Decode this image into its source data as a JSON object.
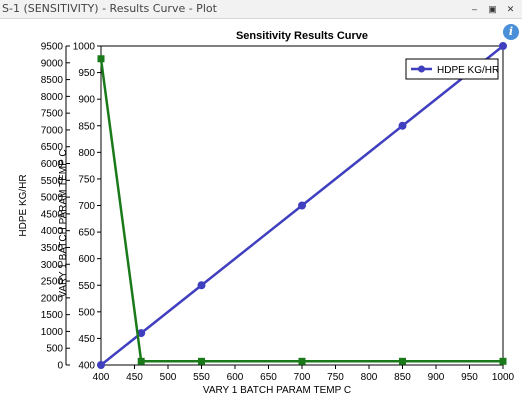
{
  "window": {
    "title": "S-1 (SENSITIVITY) - Results Curve - Plot",
    "buttons": [
      {
        "name": "minimize-button",
        "glyph": "‒"
      },
      {
        "name": "restore-button",
        "glyph": "▣"
      },
      {
        "name": "close-button",
        "glyph": "✕"
      }
    ]
  },
  "info": {
    "glyph": "i",
    "icon": "info-icon"
  },
  "colors": {
    "series_blue": "#3f3fbf",
    "series_green": "#1a7a1a",
    "axis": "#000000"
  },
  "chart_data": {
    "type": "line",
    "title": "Sensitivity Results Curve",
    "xlabel": "VARY  1 BATCH PARAM TEMP C",
    "ylabel_left": "HDPE KG/HR",
    "ylabel_right": "VARY  1 BATCH PARAM TEMP C",
    "x_ticks": [
      400,
      450,
      500,
      550,
      600,
      650,
      700,
      750,
      800,
      850,
      900,
      950,
      1000
    ],
    "y_left_ticks": [
      0,
      500,
      1000,
      1500,
      2000,
      2500,
      3000,
      3500,
      4000,
      4500,
      5000,
      5500,
      6000,
      6500,
      7000,
      7500,
      8000,
      8500,
      9000,
      9500
    ],
    "y_right_ticks": [
      400,
      450,
      500,
      550,
      600,
      650,
      700,
      750,
      800,
      850,
      900,
      950,
      1000
    ],
    "xlim": [
      400,
      1000
    ],
    "ylim_left": [
      0,
      9500
    ],
    "ylim_right": [
      400,
      1000
    ],
    "legend_position": "top-right",
    "series": [
      {
        "name": "HDPE KG/HR",
        "axis": "right",
        "marker": "circle",
        "x": [
          400,
          460,
          550,
          700,
          850,
          1000
        ],
        "y": [
          400,
          460,
          550,
          700,
          850,
          1000
        ]
      },
      {
        "name": "",
        "axis": "left",
        "marker": "square",
        "x": [
          400,
          460,
          550,
          700,
          850,
          1000
        ],
        "y": [
          9120,
          110,
          110,
          110,
          110,
          110
        ]
      }
    ]
  }
}
